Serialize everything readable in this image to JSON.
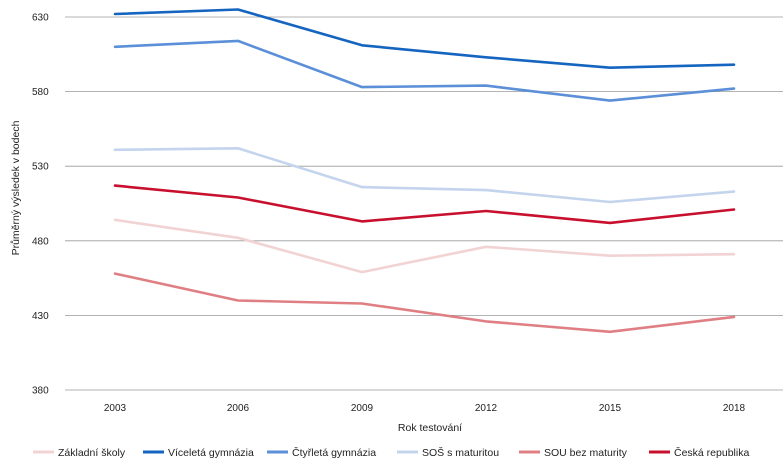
{
  "chart_data": {
    "type": "line",
    "title": "",
    "xlabel": "Rok testování",
    "ylabel": "Průměrný výsledek v bodech",
    "x": [
      "2003",
      "2006",
      "2009",
      "2012",
      "2015",
      "2018"
    ],
    "ylim": [
      380,
      630
    ],
    "yticks": [
      380,
      430,
      480,
      530,
      580,
      630
    ],
    "grid": "horizontal",
    "legend_position": "bottom",
    "series": [
      {
        "name": "Základní školy",
        "color": "#f2d3d4",
        "values": [
          494,
          482,
          459,
          476,
          470,
          471
        ]
      },
      {
        "name": "Víceletá gymnázia",
        "color": "#1565c0",
        "values": [
          632,
          635,
          611,
          603,
          596,
          598
        ]
      },
      {
        "name": "Čtyřletá gymnázia",
        "color": "#5b8fd8",
        "values": [
          610,
          614,
          583,
          584,
          574,
          582
        ]
      },
      {
        "name": "SOŠ s maturitou",
        "color": "#c3d4ec",
        "values": [
          541,
          542,
          516,
          514,
          506,
          513
        ]
      },
      {
        "name": "SOU bez maturity",
        "color": "#e07f83",
        "values": [
          458,
          440,
          438,
          426,
          419,
          429
        ]
      },
      {
        "name": "Česká republika",
        "color": "#c8102e",
        "values": [
          517,
          509,
          493,
          500,
          492,
          501
        ]
      }
    ]
  }
}
